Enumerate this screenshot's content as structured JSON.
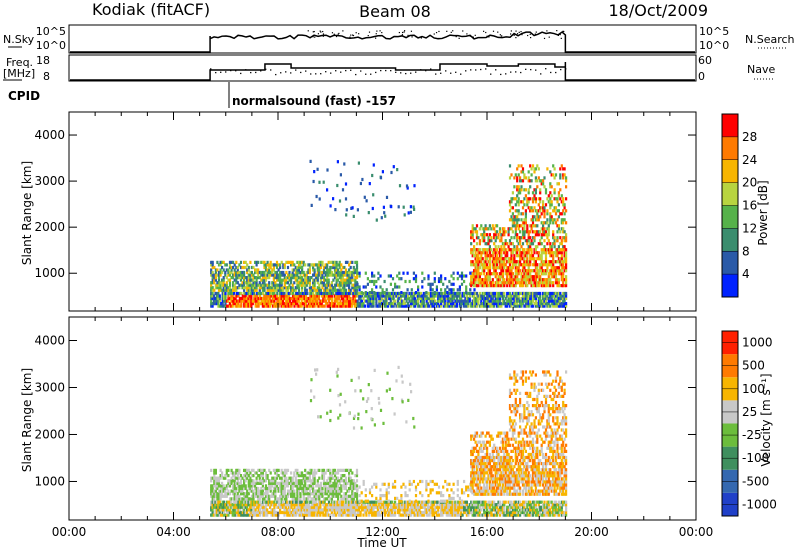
{
  "header": {
    "station": "Kodiak (fitACF)",
    "beam": "Beam 08",
    "date": "18/Oct/2009"
  },
  "top_panels": {
    "nsky_label": "N.Sky",
    "nsky_ticks": [
      "10^5",
      "10^0"
    ],
    "nsearch_label": "N.Search",
    "nsearch_ticks": [
      "10^5",
      "10^0"
    ],
    "freq_label": "Freq.",
    "freq_unit": "[MHz]",
    "freq_ticks": [
      "18",
      "8"
    ],
    "nave_label": "Nave",
    "nave_ticks": [
      "60",
      "0"
    ],
    "cpid_label": "CPID",
    "cpid_text": "normalsound (fast) -157"
  },
  "colors": {
    "power": [
      "#0022ff",
      "#2a5aa8",
      "#3a8d6e",
      "#56b24a",
      "#b8d440",
      "#f7b500",
      "#ff7a00",
      "#ff0000"
    ],
    "velocity": [
      "#2040c8",
      "#3468b0",
      "#3f8f5e",
      "#6cbd3c",
      "#c8c8c8",
      "#f7b500",
      "#ff7a00",
      "#ff2000"
    ]
  },
  "chart_data": [
    {
      "type": "heatmap",
      "quantity": "Power",
      "xlabel": "Time UT",
      "ylabel": "Slant Range [km]",
      "x_ticks": [
        "00:00",
        "04:00",
        "08:00",
        "12:00",
        "16:00",
        "20:00",
        "00:00"
      ],
      "y_ticks": [
        "1000",
        "2000",
        "3000",
        "4000"
      ],
      "xlim_hours": [
        0,
        24
      ],
      "ylim_km": [
        180,
        4500
      ],
      "colorbar_label": "Power [dB]",
      "colorbar_ticks": [
        "4",
        "8",
        "12",
        "16",
        "20",
        "24",
        "28"
      ],
      "data_window_hours": [
        5.4,
        19.0
      ]
    },
    {
      "type": "heatmap",
      "quantity": "Velocity",
      "xlabel": "Time UT",
      "ylabel": "Slant Range [km]",
      "x_ticks": [
        "00:00",
        "04:00",
        "08:00",
        "12:00",
        "16:00",
        "20:00",
        "00:00"
      ],
      "y_ticks": [
        "1000",
        "2000",
        "3000",
        "4000"
      ],
      "xlim_hours": [
        0,
        24
      ],
      "ylim_km": [
        180,
        4500
      ],
      "colorbar_label": "Velocity [m s⁻¹]",
      "colorbar_ticks": [
        "1000",
        "500",
        "100",
        "25",
        "-25",
        "-100",
        "-500",
        "-1000"
      ],
      "data_window_hours": [
        5.4,
        19.0
      ]
    }
  ]
}
